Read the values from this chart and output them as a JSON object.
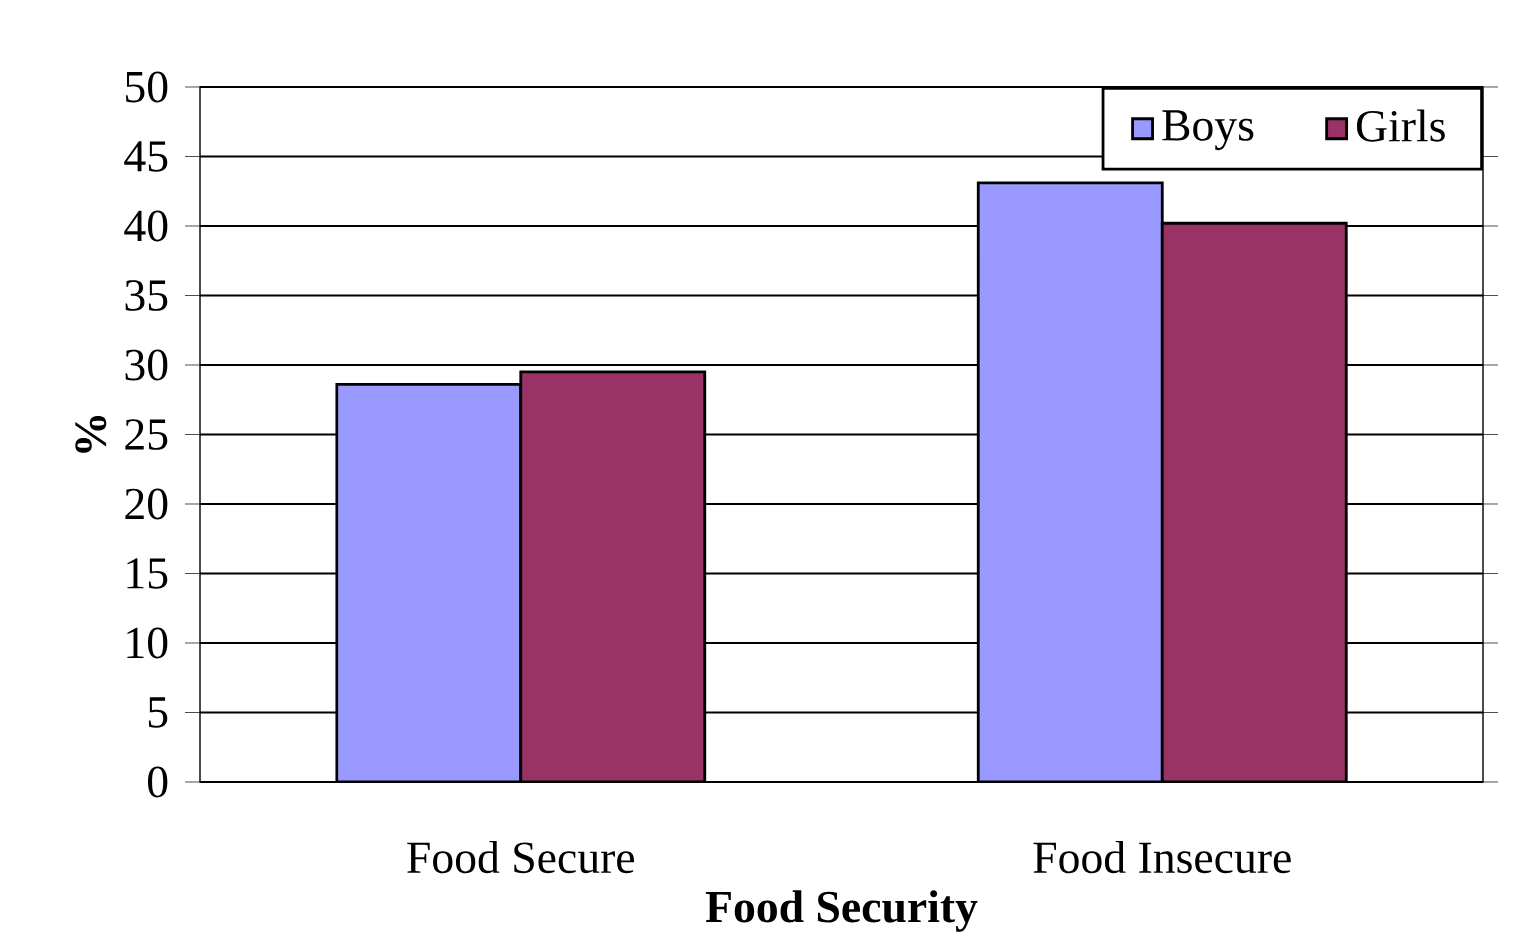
{
  "chart_data": {
    "type": "bar",
    "xlabel": "Food Security",
    "ylabel": "%",
    "categories": [
      "Food Secure",
      "Food Insecure"
    ],
    "series": [
      {
        "name": "Boys",
        "color": "#9999ff",
        "values": [
          28.6,
          43.1
        ]
      },
      {
        "name": "Girls",
        "color": "#993366",
        "values": [
          29.5,
          40.2
        ]
      }
    ],
    "ylim": [
      0,
      50
    ],
    "yticks": [
      0,
      5,
      10,
      15,
      20,
      25,
      30,
      35,
      40,
      45,
      50
    ],
    "grid": "y",
    "legend": "top right"
  }
}
